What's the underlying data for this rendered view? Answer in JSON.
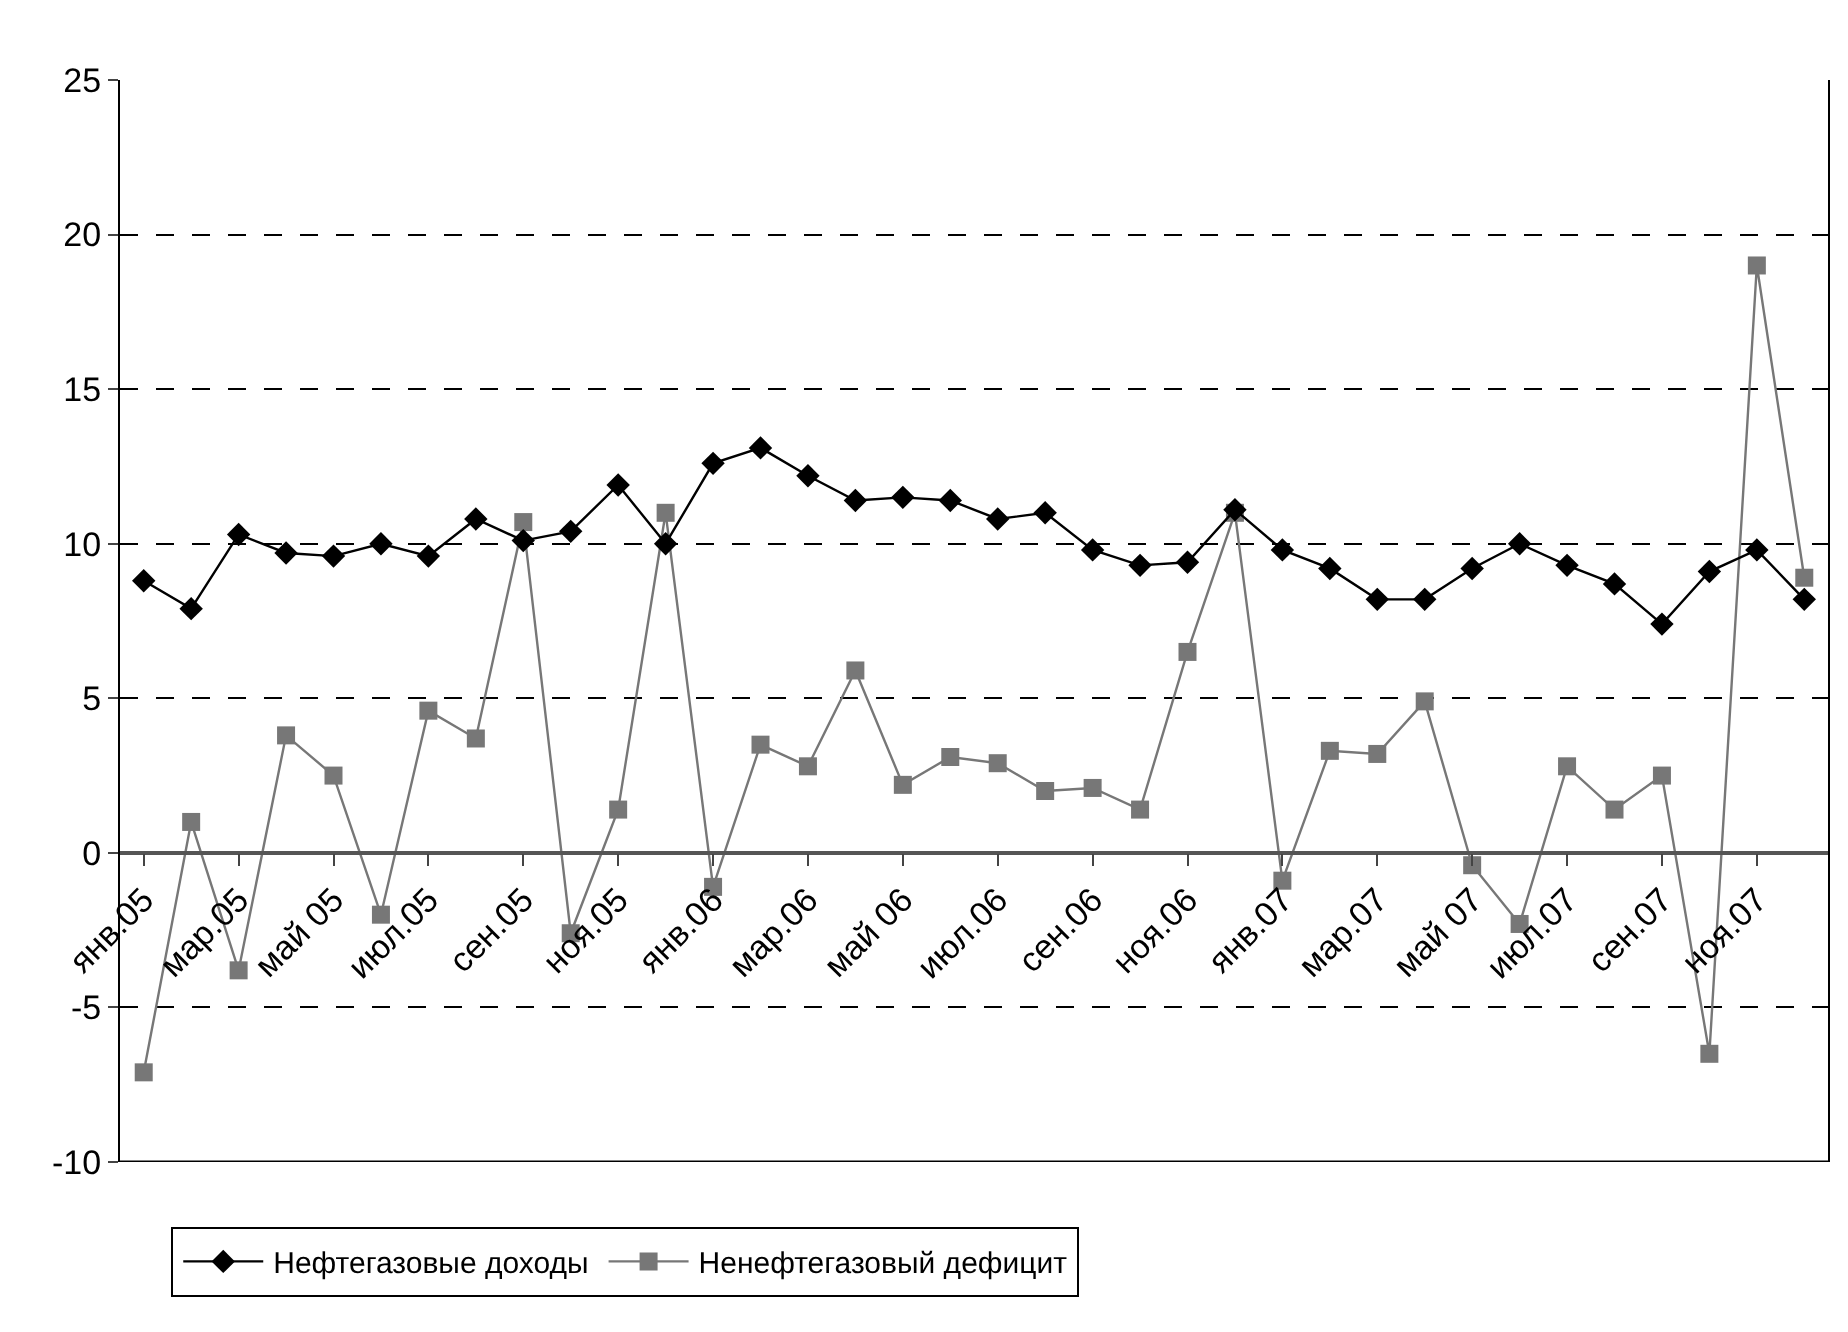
{
  "chart_data": {
    "type": "line",
    "categories": [
      "янв.05",
      null,
      "мар.05",
      null,
      "май 05",
      null,
      "июл.05",
      null,
      "сен.05",
      null,
      "ноя.05",
      null,
      "янв.06",
      null,
      "мар.06",
      null,
      "май 06",
      null,
      "июл.06",
      null,
      "сен.06",
      null,
      "ноя.06",
      null,
      "янв.07",
      null,
      "мар.07",
      null,
      "май 07",
      null,
      "июл.07",
      null,
      "сен.07",
      null,
      "ноя.07",
      null
    ],
    "series": [
      {
        "name": "Нефтегазовые доходы",
        "color": "#000000",
        "marker": "diamond",
        "values": [
          8.8,
          7.9,
          10.3,
          9.7,
          9.6,
          10.0,
          9.6,
          10.8,
          10.1,
          10.4,
          11.9,
          10.0,
          12.6,
          13.1,
          12.2,
          11.4,
          11.5,
          11.4,
          10.8,
          11.0,
          9.8,
          9.3,
          9.4,
          11.1,
          9.8,
          9.2,
          8.2,
          8.2,
          9.2,
          10.0,
          9.3,
          8.7,
          7.4,
          9.1,
          9.8,
          8.2
        ]
      },
      {
        "name": "Ненефтегазовый дефицит",
        "color": "#777777",
        "marker": "square",
        "values": [
          -7.1,
          1.0,
          -3.8,
          3.8,
          2.5,
          -2.0,
          4.6,
          3.7,
          10.7,
          -2.6,
          1.4,
          11.0,
          -1.1,
          3.5,
          2.8,
          5.9,
          2.2,
          3.1,
          2.9,
          2.0,
          2.1,
          1.4,
          6.5,
          11.0,
          -0.9,
          3.3,
          3.2,
          4.9,
          -0.4,
          -2.3,
          2.8,
          1.4,
          2.5,
          -6.5,
          19.0,
          8.9
        ]
      }
    ],
    "ylim": [
      -10,
      25
    ],
    "yticks": [
      -10,
      -5,
      0,
      5,
      10,
      15,
      20,
      25
    ],
    "grid": "y",
    "legend": "bottom",
    "line_style": "solid"
  }
}
